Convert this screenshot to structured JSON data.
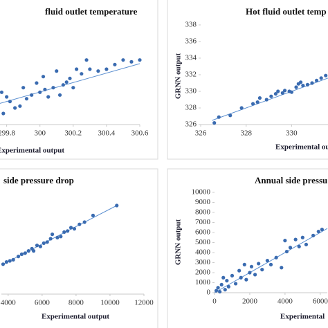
{
  "chart_data": [
    {
      "type": "scatter",
      "title": "fluid outlet temperature",
      "xlabel": "Experimental output",
      "color": "#3a6bb0",
      "line_color": "#5b8fd0",
      "x": [
        299.77,
        299.78,
        299.8,
        299.82,
        299.85,
        299.88,
        299.9,
        299.92,
        299.95,
        299.98,
        300.0,
        300.02,
        300.03,
        300.05,
        300.08,
        300.1,
        300.12,
        300.14,
        300.16,
        300.18,
        300.2,
        300.22,
        300.25,
        300.28,
        300.3,
        300.35,
        300.4,
        300.45,
        300.5,
        300.55,
        300.6
      ],
      "values": [
        299.95,
        299.72,
        299.9,
        299.85,
        299.78,
        299.8,
        300.0,
        299.88,
        299.92,
        300.05,
        299.95,
        300.12,
        299.98,
        299.9,
        300.0,
        300.18,
        299.92,
        300.03,
        300.06,
        300.1,
        300.0,
        300.2,
        300.15,
        300.3,
        300.2,
        300.18,
        300.2,
        300.25,
        300.3,
        300.28,
        300.3
      ],
      "fit": {
        "x": [
          299.76,
          300.6
        ],
        "y": [
          299.83,
          300.26
        ]
      },
      "xlim": [
        299.76,
        300.6
      ],
      "ylim": [
        299.6,
        300.8
      ],
      "xticks": [
        299.8,
        300,
        300.2,
        300.4,
        300.6
      ]
    },
    {
      "type": "scatter",
      "title": "Hot fluid outlet temp",
      "xlabel": "Experimental outp",
      "ylabel": "GRNN output",
      "color": "#3a6bb0",
      "line_color": "#5b8fd0",
      "x": [
        326.6,
        326.8,
        327.3,
        327.8,
        328.3,
        328.5,
        328.6,
        328.9,
        329.1,
        329.3,
        329.4,
        329.6,
        329.7,
        329.9,
        330.0,
        330.2,
        330.3,
        330.4,
        330.5,
        330.7,
        330.9,
        331.1,
        331.3,
        331.5
      ],
      "values": [
        326.2,
        326.9,
        327.1,
        328.0,
        328.5,
        328.7,
        329.2,
        329.0,
        329.4,
        329.7,
        330.0,
        329.8,
        330.1,
        330.0,
        329.9,
        330.5,
        330.9,
        331.1,
        330.7,
        330.8,
        331.0,
        331.3,
        331.6,
        331.9
      ],
      "fit": {
        "x": [
          326.5,
          331.6
        ],
        "y": [
          326.5,
          331.6
        ]
      },
      "xlim": [
        326,
        331.6
      ],
      "ylim": [
        326,
        338
      ],
      "xticks": [
        326,
        328,
        330
      ],
      "yticks": [
        326,
        328,
        330,
        332,
        334,
        336,
        338
      ]
    },
    {
      "type": "scatter",
      "title": "side pressure drop",
      "xlabel": "Experimental output",
      "color": "#3a6bb0",
      "line_color": "#5b8fd0",
      "x": [
        3700,
        3900,
        4100,
        4300,
        4600,
        4800,
        5000,
        5200,
        5400,
        5500,
        5700,
        5900,
        6100,
        6300,
        6500,
        6600,
        6900,
        7100,
        7300,
        7500,
        7700,
        7900,
        8200,
        8500,
        9000,
        10400
      ],
      "values": [
        4700,
        4900,
        5000,
        5100,
        5400,
        5600,
        5700,
        5900,
        6100,
        5900,
        6400,
        6300,
        6600,
        6700,
        7000,
        7400,
        7100,
        7200,
        7600,
        7700,
        8000,
        7900,
        8300,
        8500,
        9100,
        10000
      ],
      "fit": {
        "x": [
          3700,
          10400
        ],
        "y": [
          4700,
          10000
        ]
      },
      "xlim": [
        3600,
        12000
      ],
      "ylim": [
        2000,
        12000
      ],
      "xticks": [
        4000,
        6000,
        8000,
        10000,
        12000
      ]
    },
    {
      "type": "scatter",
      "title": "Annual side pressu",
      "xlabel": "Experimental",
      "ylabel": "GRNN output",
      "color": "#3a6bb0",
      "line_color": "#5b8fd0",
      "x": [
        100,
        200,
        300,
        400,
        500,
        600,
        700,
        800,
        1000,
        1200,
        1400,
        1500,
        1700,
        1800,
        2000,
        2100,
        2300,
        2500,
        2700,
        3000,
        3200,
        3500,
        3800,
        4000,
        4100,
        4300,
        4600,
        4800,
        5000,
        5200,
        5600,
        5900,
        6100
      ],
      "values": [
        200,
        500,
        100,
        800,
        1500,
        300,
        1200,
        600,
        1700,
        900,
        2200,
        1500,
        2800,
        1300,
        2000,
        2600,
        1800,
        2900,
        2300,
        3200,
        2800,
        3500,
        2500,
        5200,
        4100,
        4500,
        5300,
        4600,
        5500,
        4800,
        5700,
        6100,
        6300
      ],
      "fit": {
        "x": [
          0,
          6400
        ],
        "y": [
          0,
          6400
        ]
      },
      "xlim": [
        0,
        6400
      ],
      "ylim": [
        0,
        10000
      ],
      "xticks": [
        0,
        2000,
        4000,
        6000
      ],
      "yticks": [
        0,
        1000,
        2000,
        3000,
        4000,
        5000,
        6000,
        7000,
        8000,
        9000,
        10000
      ]
    }
  ]
}
